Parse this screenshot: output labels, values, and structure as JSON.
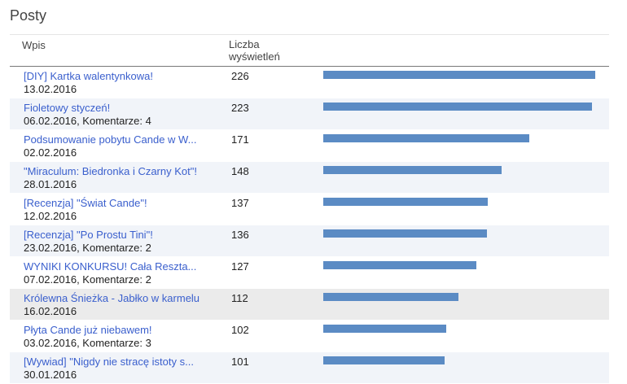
{
  "panel": {
    "title": "Posty",
    "columns": {
      "post": "Wpis",
      "views_line1": "Liczba",
      "views_line2": "wyświetleń"
    }
  },
  "colors": {
    "bar": "#5b8bc4",
    "link": "#3a5fcd",
    "alt_row": "#f1f4f9",
    "highlight_row": "#ebebeb"
  },
  "max_views": 226,
  "rows": [
    {
      "title": "[DIY] Kartka walentynkowa!",
      "meta": "13.02.2016",
      "views": 226,
      "style": ""
    },
    {
      "title": "Fioletowy styczeń!",
      "meta": "06.02.2016, Komentarze: 4",
      "views": 223,
      "style": "alt"
    },
    {
      "title": "Podsumowanie pobytu Cande w W...",
      "meta": "02.02.2016",
      "views": 171,
      "style": ""
    },
    {
      "title": "\"Miraculum: Biedronka i Czarny Kot\"!",
      "meta": "28.01.2016",
      "views": 148,
      "style": "alt"
    },
    {
      "title": "[Recenzja] \"Świat Cande\"!",
      "meta": "12.02.2016",
      "views": 137,
      "style": ""
    },
    {
      "title": "[Recenzja] \"Po Prostu Tini\"!",
      "meta": "23.02.2016, Komentarze: 2",
      "views": 136,
      "style": "alt"
    },
    {
      "title": "WYNIKI KONKURSU! Cała Reszta...",
      "meta": "07.02.2016, Komentarze: 2",
      "views": 127,
      "style": ""
    },
    {
      "title": "Królewna Śnieżka - Jabłko w karmelu",
      "meta": "16.02.2016",
      "views": 112,
      "style": "hl"
    },
    {
      "title": "Płyta Cande już niebawem!",
      "meta": "03.02.2016, Komentarze: 3",
      "views": 102,
      "style": ""
    },
    {
      "title": "[Wywiad] \"Nigdy nie stracę istoty s...",
      "meta": "30.01.2016",
      "views": 101,
      "style": "alt"
    }
  ]
}
